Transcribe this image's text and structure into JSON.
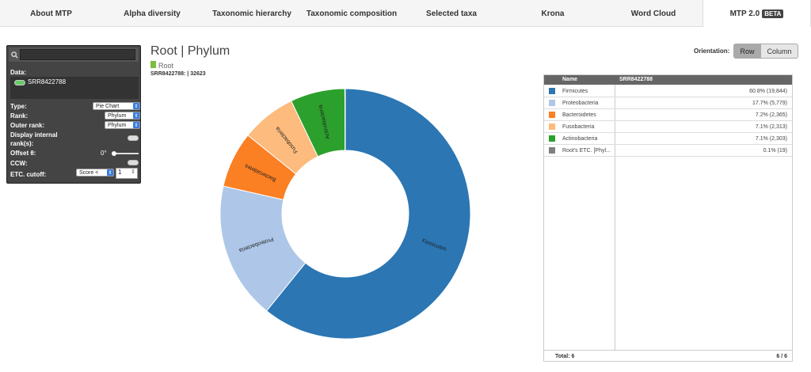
{
  "tabs": [
    {
      "label": "About MTP"
    },
    {
      "label": "Alpha diversity"
    },
    {
      "label": "Taxonomic hierarchy"
    },
    {
      "label": "Taxonomic composition"
    },
    {
      "label": "Selected taxa"
    },
    {
      "label": "Krona"
    },
    {
      "label": "Word Cloud"
    },
    {
      "label": "MTP 2.0",
      "badge": "BETA"
    }
  ],
  "panel": {
    "search_icon": "search-icon",
    "data_label": "Data:",
    "dataset": "SRR8422788",
    "type_label": "Type:",
    "type_value": "Pie Chart",
    "rank_label": "Rank:",
    "rank_value": "Phylum",
    "outer_rank_label": "Outer rank:",
    "outer_rank_value": "Phylum",
    "display_internal_label1": "Display internal",
    "display_internal_label2": "rank(s):",
    "offset_label": "Offset θ:",
    "offset_value": "0°",
    "ccw_label": "CCW:",
    "etc_label": "ETC. cutoff:",
    "etc_mode": "Score <",
    "etc_value": "1"
  },
  "header": {
    "title": "Root | Phylum",
    "breadcrumb": "Root",
    "dataset_line": "SRR8422788:  | 32623"
  },
  "orientation": {
    "label": "Orientation:",
    "row": "Row",
    "column": "Column"
  },
  "table": {
    "col_name": "Name",
    "col_sample": "SRR8422788",
    "rows": [
      {
        "name": "Firmicutes",
        "value": "60.8% (19,844)",
        "color": "#2b76b3"
      },
      {
        "name": "Proteobacteria",
        "value": "17.7% (5,779)",
        "color": "#aec7e8"
      },
      {
        "name": "Bacteroidetes",
        "value": "7.2% (2,365)",
        "color": "#fb7f23"
      },
      {
        "name": "Fusobacteria",
        "value": "7.1% (2,313)",
        "color": "#fdbb7d"
      },
      {
        "name": "Actinobacteria",
        "value": "7.1% (2,303)",
        "color": "#2ca02c"
      },
      {
        "name": "Root's ETC. [Phyl...",
        "value": "0.1% (19)",
        "color": "#7f7f7f"
      }
    ],
    "total": "Total: 6",
    "pages": "6 / 6"
  },
  "chart_data": {
    "type": "pie",
    "donut": true,
    "labels": [
      "Firmicutes",
      "Proteobacteria",
      "Bacteroidetes",
      "Fusobacteria",
      "Actinobacteria",
      "Root's ETC."
    ],
    "values": [
      19844,
      5779,
      2365,
      2313,
      2303,
      19
    ],
    "colors": [
      "#2b76b3",
      "#aec7e8",
      "#fb7f23",
      "#fdbb7d",
      "#2ca02c",
      "#7f7f7f"
    ],
    "start_angle_deg": 0,
    "counter_clockwise": false
  }
}
